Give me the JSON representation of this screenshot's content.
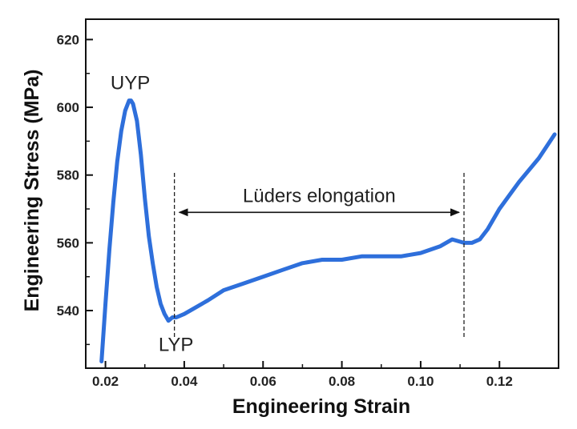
{
  "chart_data": {
    "type": "line",
    "title": "",
    "xlabel": "Engineering Strain",
    "ylabel": "Engineering Stress (MPa)",
    "xlim": [
      0.015,
      0.135
    ],
    "ylim": [
      523,
      626
    ],
    "x_ticks": [
      0.02,
      0.04,
      0.06,
      0.08,
      0.1,
      0.12
    ],
    "x_tick_labels": [
      "0.02",
      "0.04",
      "0.06",
      "0.08",
      "0.10",
      "0.12"
    ],
    "y_ticks": [
      540,
      560,
      580,
      600,
      620
    ],
    "y_tick_labels": [
      "540",
      "560",
      "580",
      "600",
      "620"
    ],
    "grid": false,
    "legend": "none",
    "series_color": "#2E6FDB",
    "series": [
      {
        "x": [
          0.019,
          0.02,
          0.021,
          0.022,
          0.023,
          0.024,
          0.025,
          0.026,
          0.0265,
          0.027,
          0.028,
          0.029,
          0.03,
          0.031,
          0.032,
          0.033,
          0.034,
          0.035,
          0.036,
          0.037,
          0.038,
          0.04,
          0.043,
          0.046,
          0.05,
          0.055,
          0.06,
          0.065,
          0.07,
          0.075,
          0.08,
          0.085,
          0.09,
          0.095,
          0.1,
          0.105,
          0.108,
          0.111,
          0.113,
          0.115,
          0.117,
          0.12,
          0.125,
          0.13,
          0.134
        ],
        "y": [
          525,
          542,
          558,
          572,
          584,
          593,
          599,
          602,
          602,
          601,
          596,
          586,
          573,
          562,
          554,
          547,
          542,
          539,
          537,
          538,
          538,
          539,
          541,
          543,
          546,
          548,
          550,
          552,
          554,
          555,
          555,
          556,
          556,
          556,
          557,
          559,
          561,
          560,
          560,
          561,
          564,
          570,
          578,
          585,
          592
        ]
      }
    ],
    "annotations": [
      {
        "text": "UYP",
        "x": 0.0265,
        "y": 602
      },
      {
        "text": "LYP",
        "x": 0.0375,
        "y": 537
      },
      {
        "text": "Lüders elongation",
        "x_start": 0.0375,
        "x_end": 0.111,
        "y": 569
      }
    ],
    "reference_lines_x": [
      0.0375,
      0.111
    ]
  }
}
